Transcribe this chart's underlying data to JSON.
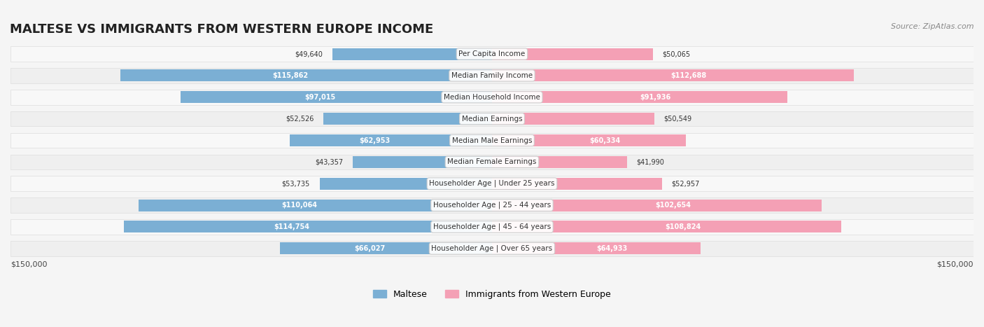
{
  "title": "MALTESE VS IMMIGRANTS FROM WESTERN EUROPE INCOME",
  "source": "Source: ZipAtlas.com",
  "categories": [
    "Per Capita Income",
    "Median Family Income",
    "Median Household Income",
    "Median Earnings",
    "Median Male Earnings",
    "Median Female Earnings",
    "Householder Age | Under 25 years",
    "Householder Age | 25 - 44 years",
    "Householder Age | 45 - 64 years",
    "Householder Age | Over 65 years"
  ],
  "maltese_values": [
    49640,
    115862,
    97015,
    52526,
    62953,
    43357,
    53735,
    110064,
    114754,
    66027
  ],
  "immigrant_values": [
    50065,
    112688,
    91936,
    50549,
    60334,
    41990,
    52957,
    102654,
    108824,
    64933
  ],
  "maltese_labels": [
    "$49,640",
    "$115,862",
    "$97,015",
    "$52,526",
    "$62,953",
    "$43,357",
    "$53,735",
    "$110,064",
    "$114,754",
    "$66,027"
  ],
  "immigrant_labels": [
    "$50,065",
    "$112,688",
    "$91,936",
    "$50,549",
    "$60,334",
    "$41,990",
    "$52,957",
    "$102,654",
    "$108,824",
    "$64,933"
  ],
  "maltese_color": "#7bafd4",
  "immigrant_color": "#f4a0b5",
  "maltese_label_color_threshold": 60000,
  "max_value": 150000,
  "bg_color": "#f5f5f5",
  "row_bg_color": "#ffffff",
  "row_alt_bg_color": "#f0f0f0",
  "legend_maltese": "Maltese",
  "legend_immigrant": "Immigrants from Western Europe",
  "xlabel_left": "$150,000",
  "xlabel_right": "$150,000"
}
